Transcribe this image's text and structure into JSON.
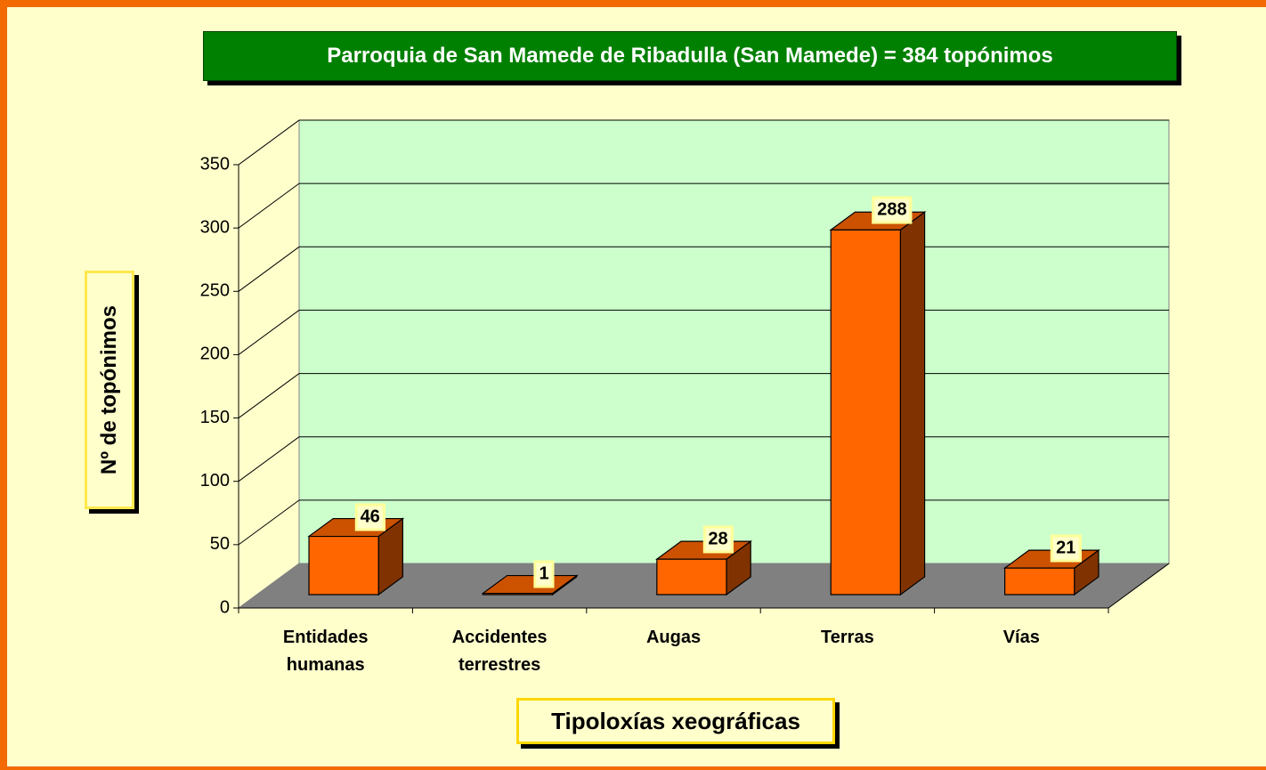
{
  "chart_data": {
    "type": "bar",
    "title": "Parroquia de San Mamede de Ribadulla (San Mamede) = 384 topónimos",
    "xlabel": "Tipoloxías xeográficas",
    "ylabel": "Nº de topónimos",
    "categories": [
      "Entidades humanas",
      "Accidentes terrestres",
      "Augas",
      "Terras",
      "Vías"
    ],
    "values": [
      46,
      1,
      28,
      288,
      21
    ],
    "color": "#ff6600",
    "ylim": [
      0,
      350
    ],
    "yticks": [
      0,
      50,
      100,
      150,
      200,
      250,
      300,
      350
    ],
    "grid": true
  }
}
